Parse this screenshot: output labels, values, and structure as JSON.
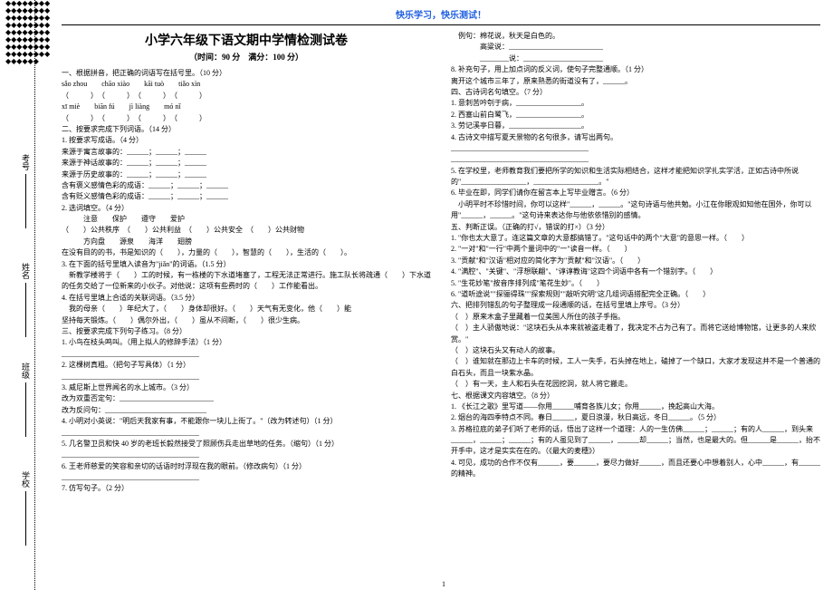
{
  "colors": {
    "text": "#000000",
    "banner": "#2060e0",
    "bg": "#ffffff"
  },
  "binding": {
    "fields": [
      "考号",
      "姓名",
      "班级",
      "学校"
    ]
  },
  "banner": "快乐学习，快乐测试！",
  "title": "小学六年级下语文期中学情检测试卷",
  "subtitle": "（时间：90 分　满分：100 分）",
  "left": [
    "一、根据拼音，把正确的词语写在括号里。（10 分）",
    "sǎo zhou　　chāo xiào　　kāi tuò　　tiǎo xìn",
    "（　　　）　（　　　）　（　　　）　（　　　）",
    "xī miè　　biān fú　　jì liàng　　mó nǐ",
    "（　　　）　（　　　）　（　　　）　（　　　）",
    "二、按要求完成下列词语。（14 分）",
    "1. 按要求写成语。（4 分）",
    "来源于寓言故事的：______；______；______",
    "来源于神话故事的：______；______；______",
    "来源于历史故事的：______；______；______",
    "含有褒义感情色彩的成语：______；______；______",
    "含有贬义感情色彩的成语：______；______；______",
    "2. 选词填空。（4 分）",
    "　　　注意　　保护　　遵守　　爱护",
    "（　　）公共秩序　（　　）公共利益　（　　）公共安全　（　　）公共财物",
    "　　　方向盘　　源泉　　海洋　　翅膀",
    "在没有目的的书，书是知识的（　　），力量的（　　），智慧的（　　），生活的（　　）。",
    "3. 在下面的括号里填入读音为\"jiǎn\"的词语。（1.5 分）",
    "　新教学楼将于（　　）工的时候，有一栋楼的下水道堵塞了，工程无法正常进行。施工队长将疏通（　　）下水道的任务交给了一位新来的小伙子。对他说：这项有些费时的（　　）工作能看出。",
    "4. 在括号里填上合适的关联词语。（3.5 分）",
    "　我的母亲（　　）年纪大了，（　　）身体却很好。（　　）天气有无变化，他（　　）能",
    "坚持每天锻炼。（　　）偶尔外出，（　　）虽从不间断，（　　）很少生病。",
    "三、按要求完成下列句子练习。（8 分）",
    "1. 小鸟在枝头鸣叫。（用上拟人的修辞手法）（1 分）",
    "______________________________________",
    "2. 这棵树真粗。（把句子写具体）（1 分）",
    "______________________________________",
    "3. 威尼斯上世界闻名的水上城市。（3 分）",
    "改为双重否定句：__________________________",
    "改为反问句：____________________________",
    "4. 小明对小英说：\"明后天我家有事，不能跟你一块儿上街了。\"（改为转述句）（1 分）",
    "______________________________________",
    "5. 几名警卫员和快 40 岁的老班长毅然接受了照顾伤兵走出草地的任务。（缩句）（1 分）",
    "______________________________________",
    "6. 王老师慈爱的笑容和亲切的话语时时浮现在我的眼前。（修改病句）（1 分）",
    "______________________________________",
    "7. 仿写句子。（2 分）"
  ],
  "right": [
    "　例句：棉花说，秋天是白色的。",
    "　　　　高粱说：__________________________",
    "　　　　________说：______________________",
    "8. 补充句子，用上加点词的反义词，使句子完整通顺。（1 分）",
    "离开这个城市三年了，原来熟悉的街道没有了，______。",
    "四、古诗词名句填空。（7 分）",
    "1. 意刺苦吟刳于病，__________________。",
    "2. 西塞山前白鹭飞，__________________。",
    "3. 劳记溪亭日暮，____________________。",
    "4. 古诗文中描写夏天景物的名句很多，请写出两句。",
    "______________________________________",
    "______________________________________",
    "5. 在学校里，老师教育我们要把所学的知识和生活实际相结合，这样才能把知识学扎实学活，正如古诗中所说的\"__________________，__________________。\"",
    "6. 毕业在即，同学们请你在留言本上写毕业赠言。（6 分）",
    "　小明平时不珍惜时间，你可以这样\"______，______。\"这句诗语与他共勉。小江在你眼观如知他在国外，你可以用\"______，______。\"这句诗来表达你与他依依惜别的感情。",
    "五、判断正误。（正确的打√，错误的打×）（3 分）",
    "1. \"你也太大意了。连这篇文章的大意都搞错了。\"这句话中的两个\"大意\"的意思一样。（　　）",
    "2. \"一对\"和\"一行\"中两个量词中的\"一\"读音一样。（　　）",
    "3. \"贡献\"和\"汉语\"相对应的简化字为\"贡献\"和\"汉语\"。（　　）",
    "4. \"满腔\"、\"关键\"、\"浮想联翩\"、\"谆谆教诲\"这四个词语中各有一个错别字。（　　）",
    "5. \"生花妙笔\"按音序排列成\"笔花生妙\"。（　　）",
    "6. \"道听途说\"\"探骊得珠\"\"探索规则\"\"敲听究明\"这几组词语搭配完全正确。（　　）",
    "六、把排列错乱的句子整理成一段通顺的话，在括号里填上序号。（3 分）",
    "（　）原来木盒子里藏着一位美国人所住的孩子手指。",
    "（　）主人骄傲地说：\"这块石头从本来就被盗走着了，我决定不占为己有了。而将它送给博物馆，让更多的人来欣赏。\"",
    "（　）这块石头又有动人的故事。",
    "（　）谁知就在那边上卡车的时候，工人一失手，石头掉在地上，磕掉了一个缺口，大家才发现这并不是一个普通的白石头，而且一块紫水晶。",
    "（　）有一天，主人和石头在花园挖洞，就人将它搬走。",
    "七、根据课文内容填空。（8 分）",
    "1. 《长江之歌》里写道——你用______哺育各族儿女；你用______，挽起高山大海。",
    "2. 烟台的海四季特点不同。春日______，夏日浪漫，秋日高远，冬日______。（5 分）",
    "3. 苏格拉底的弟子们听了老师的话，悟出了这样一个道理：人的一生仿佛______；______；有的人______，到头来______，______；______；有的人虽见到了______，______却______；当然，也是最大的。但______是______，抬不开手中，这才是实实在在的。（《最大的麦穗》）",
    "4. 可见，成功的合作不仅有______，要______，要尽力做好______，而且还要心中想着别人，心中______，有______的精神。"
  ],
  "page_number": "1"
}
